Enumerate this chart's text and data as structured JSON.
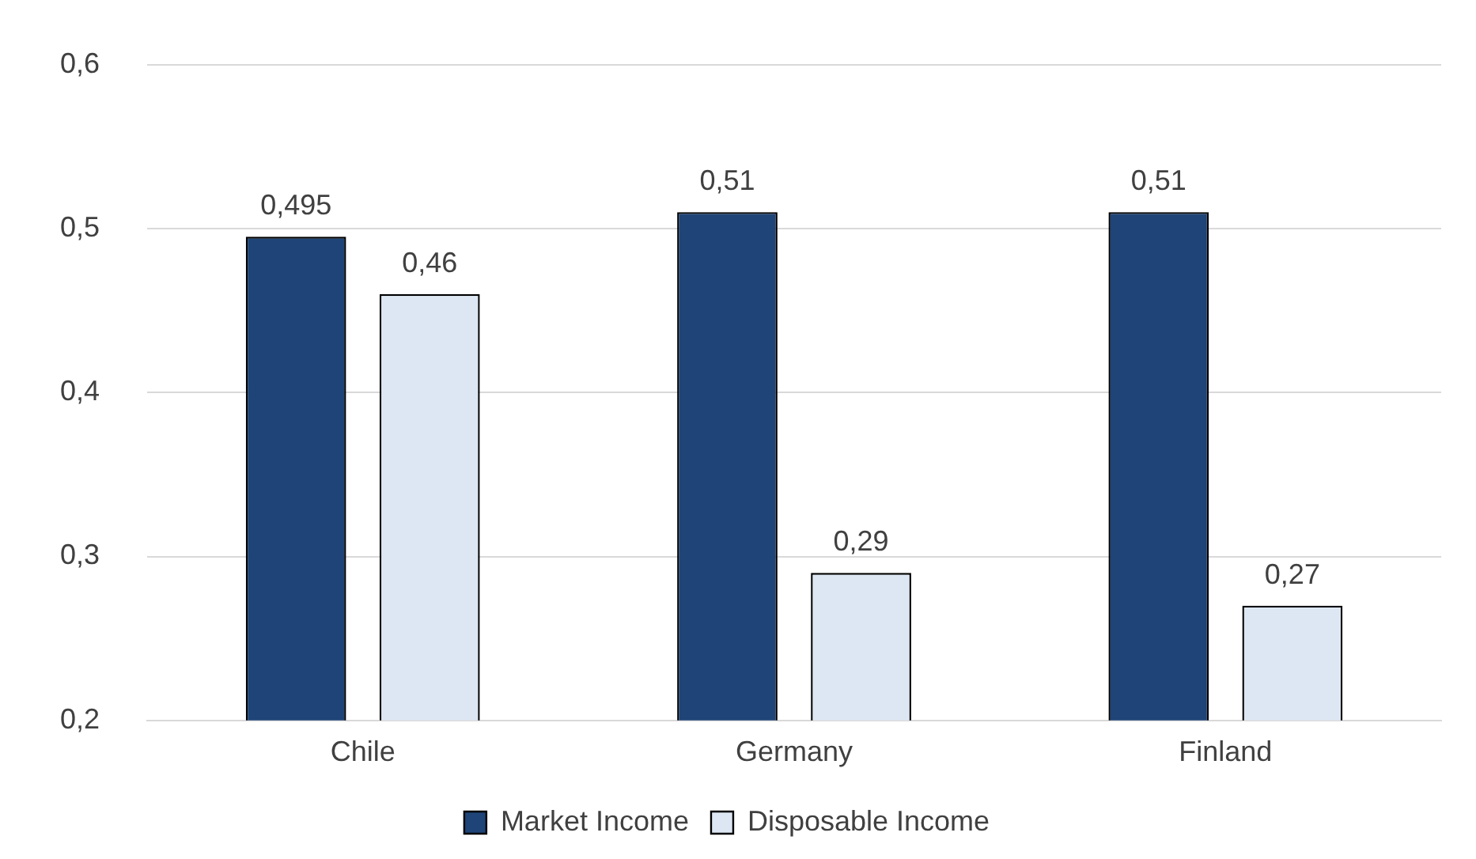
{
  "chart_data": {
    "type": "bar",
    "categories": [
      "Chile",
      "Germany",
      "Finland"
    ],
    "series": [
      {
        "name": "Market Income",
        "color": "#1f4477",
        "values": [
          0.495,
          0.51,
          0.51
        ],
        "value_labels": [
          "0,495",
          "0,51",
          "0,51"
        ]
      },
      {
        "name": "Disposable Income",
        "color": "#dce7f3",
        "values": [
          0.46,
          0.29,
          0.27
        ],
        "value_labels": [
          "0,46",
          "0,29",
          "0,27"
        ]
      }
    ],
    "ylim": [
      0.2,
      0.6
    ],
    "yticks": [
      {
        "value": 0.2,
        "label": "0,2"
      },
      {
        "value": 0.3,
        "label": "0,3"
      },
      {
        "value": 0.4,
        "label": "0,4"
      },
      {
        "value": 0.5,
        "label": "0,5"
      },
      {
        "value": 0.6,
        "label": "0,6"
      }
    ],
    "grid": "y",
    "legend": "bottom"
  }
}
